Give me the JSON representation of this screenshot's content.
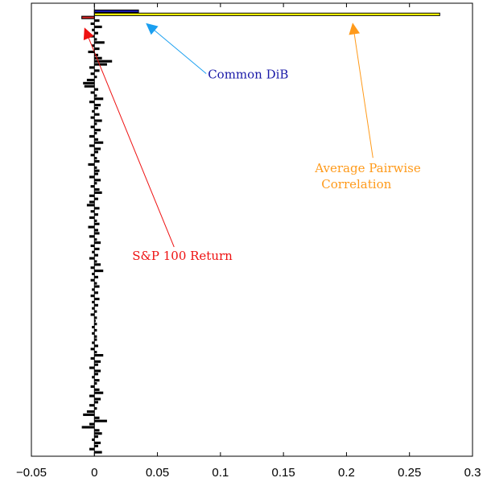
{
  "chart_data": {
    "type": "bar",
    "orientation": "horizontal",
    "title": "",
    "xlabel": "",
    "ylabel": "",
    "xlim": [
      -0.05,
      0.3
    ],
    "xticks": [
      -0.05,
      0,
      0.05,
      0.1,
      0.15,
      0.2,
      0.25,
      0.3
    ],
    "xtick_labels": [
      "−0.05",
      "0",
      "0.05",
      "0.1",
      "0.15",
      "0.2",
      "0.25",
      "0.3"
    ],
    "y_ticks_shown": false,
    "grid": false,
    "highlighted_bars": [
      {
        "label": "Average Pairwise Correlation",
        "value": 0.274,
        "color": "#ffff00",
        "row": 1
      },
      {
        "label": "Common DiB",
        "value": 0.035,
        "color": "#1a1aa8",
        "row": 0
      },
      {
        "label": "S&P 100 Return",
        "value": -0.01,
        "color": "#cc2222",
        "row": 2
      }
    ],
    "background_series": {
      "color": "#000000",
      "values": [
        0.004,
        -0.003,
        0.006,
        -0.002,
        0.003,
        -0.004,
        0.002,
        0.008,
        -0.002,
        0.004,
        -0.005,
        0.003,
        0.006,
        0.014,
        0.01,
        -0.004,
        0.004,
        -0.003,
        0.002,
        -0.006,
        -0.009,
        -0.008,
        0.003,
        -0.003,
        0.002,
        0.007,
        -0.004,
        0.005,
        0.003,
        -0.002,
        0.004,
        -0.003,
        0.006,
        0.002,
        -0.003,
        0.005,
        0.002,
        -0.004,
        0.003,
        0.007,
        -0.004,
        0.005,
        0.003,
        -0.003,
        0.002,
        0.004,
        -0.005,
        0.002,
        0.004,
        0.003,
        -0.004,
        0.005,
        0.002,
        -0.003,
        0.004,
        0.006,
        -0.004,
        0.003,
        -0.004,
        -0.006,
        0.004,
        -0.003,
        0.003,
        -0.004,
        0.002,
        0.004,
        -0.005,
        0.003,
        0.004,
        -0.004,
        0.002,
        0.005,
        -0.003,
        0.004,
        -0.002,
        0.003,
        -0.004,
        0.002,
        0.005,
        -0.003,
        0.007,
        -0.002,
        0.003,
        -0.003,
        0.002,
        0.004,
        -0.002,
        0.003,
        -0.003,
        0.004,
        -0.002,
        0.003,
        -0.002,
        0.002,
        -0.003,
        0.002,
        0.001,
        0.002,
        -0.002,
        0.002,
        -0.002,
        0.002,
        0.002,
        -0.002,
        0.003,
        -0.003,
        0.002,
        0.007,
        -0.003,
        0.005,
        0.003,
        -0.004,
        0.005,
        0.003,
        -0.002,
        0.004,
        0.002,
        -0.003,
        0.004,
        0.007,
        -0.004,
        0.005,
        0.003,
        -0.004,
        0.002,
        -0.006,
        -0.009,
        0.004,
        0.01,
        -0.004,
        -0.01,
        0.004,
        0.006,
        0.003,
        -0.002,
        0.005,
        0.003,
        -0.004,
        0.006
      ]
    },
    "annotations": [
      {
        "text": "Common DiB",
        "color": "#1a1aa8",
        "arrow_color": "#1a9ff0",
        "target": "Common DiB",
        "text_at": {
          "x": 0.09,
          "row": 22
        }
      },
      {
        "text_lines": [
          "Average Pairwise",
          "Correlation"
        ],
        "color": "#ff9a1a",
        "arrow_color": "#ff9a1a",
        "target": "Average Pairwise Correlation",
        "text_at": {
          "x": 0.175,
          "row": 52
        }
      },
      {
        "text": "S&P 100 Return",
        "color": "#ee1111",
        "arrow_color": "#ee1111",
        "target": "S&P 100 Return",
        "text_at": {
          "x": 0.03,
          "row": 80
        }
      }
    ]
  }
}
